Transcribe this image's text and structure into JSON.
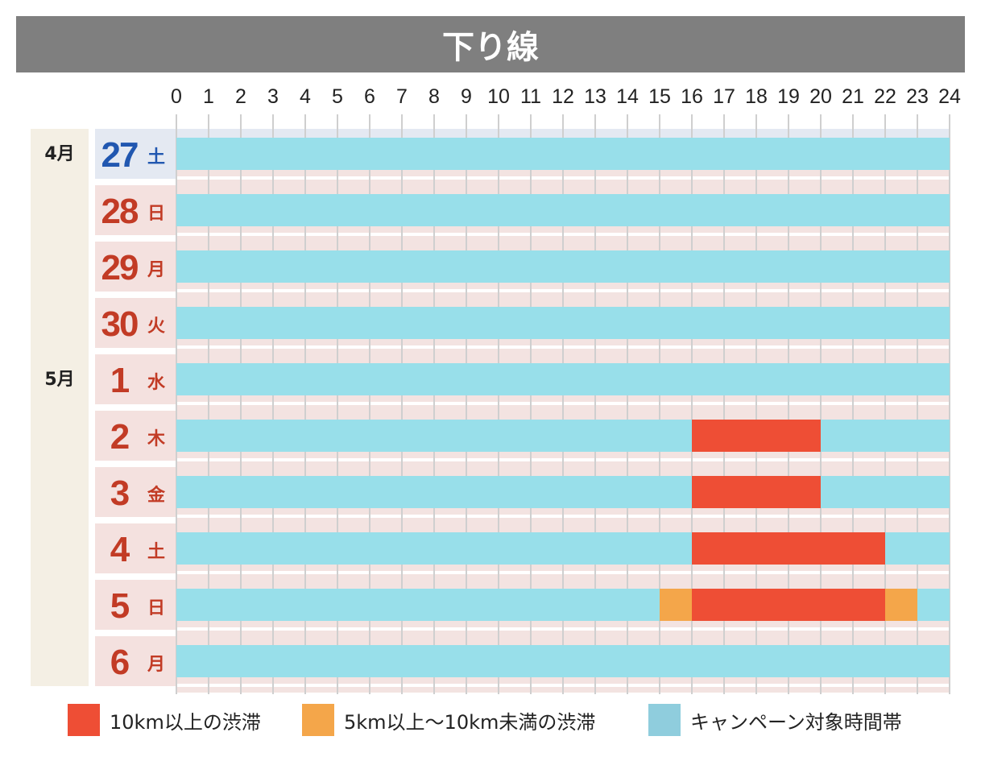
{
  "title": "下り線",
  "colors": {
    "heavy": "#ee4e35",
    "moderate": "#f4a64a",
    "campaign": "#98dfea",
    "legend_campaign": "#8fcddd",
    "sat": "#2157b0",
    "holiday": "#c23b25",
    "title_bg": "#7f7f7f"
  },
  "legend": [
    {
      "key": "heavy",
      "label": "10km以上の渋滞"
    },
    {
      "key": "moderate",
      "label": "5km以上〜10km未満の渋滞"
    },
    {
      "key": "campaign",
      "label": "キャンペーン対象時間帯"
    }
  ],
  "chart_data": {
    "type": "timeline",
    "title": "下り線",
    "x_range": [
      0,
      24
    ],
    "x_ticks": [
      "0",
      "1",
      "2",
      "3",
      "4",
      "5",
      "6",
      "7",
      "8",
      "9",
      "10",
      "11",
      "12",
      "13",
      "14",
      "15",
      "16",
      "17",
      "18",
      "19",
      "20",
      "21",
      "22",
      "23",
      "24"
    ],
    "months": [
      {
        "label": "4月",
        "first_row": 0
      },
      {
        "label": "5月",
        "first_row": 4
      }
    ],
    "rows": [
      {
        "day": "27",
        "weekday": "土",
        "style": "sat",
        "segments": [
          {
            "start": 0,
            "end": 24,
            "type": "campaign"
          }
        ]
      },
      {
        "day": "28",
        "weekday": "日",
        "style": "holiday",
        "segments": [
          {
            "start": 0,
            "end": 24,
            "type": "campaign"
          }
        ]
      },
      {
        "day": "29",
        "weekday": "月",
        "style": "holiday",
        "segments": [
          {
            "start": 0,
            "end": 24,
            "type": "campaign"
          }
        ]
      },
      {
        "day": "30",
        "weekday": "火",
        "style": "holiday",
        "segments": [
          {
            "start": 0,
            "end": 24,
            "type": "campaign"
          }
        ]
      },
      {
        "day": "1",
        "weekday": "水",
        "style": "holiday",
        "segments": [
          {
            "start": 0,
            "end": 24,
            "type": "campaign"
          }
        ]
      },
      {
        "day": "2",
        "weekday": "木",
        "style": "holiday",
        "segments": [
          {
            "start": 0,
            "end": 16,
            "type": "campaign"
          },
          {
            "start": 16,
            "end": 20,
            "type": "heavy"
          },
          {
            "start": 20,
            "end": 24,
            "type": "campaign"
          }
        ]
      },
      {
        "day": "3",
        "weekday": "金",
        "style": "holiday",
        "segments": [
          {
            "start": 0,
            "end": 16,
            "type": "campaign"
          },
          {
            "start": 16,
            "end": 20,
            "type": "heavy"
          },
          {
            "start": 20,
            "end": 24,
            "type": "campaign"
          }
        ]
      },
      {
        "day": "4",
        "weekday": "土",
        "style": "holiday",
        "segments": [
          {
            "start": 0,
            "end": 16,
            "type": "campaign"
          },
          {
            "start": 16,
            "end": 22,
            "type": "heavy"
          },
          {
            "start": 22,
            "end": 24,
            "type": "campaign"
          }
        ]
      },
      {
        "day": "5",
        "weekday": "日",
        "style": "holiday",
        "segments": [
          {
            "start": 0,
            "end": 15,
            "type": "campaign"
          },
          {
            "start": 15,
            "end": 16,
            "type": "moderate"
          },
          {
            "start": 16,
            "end": 22,
            "type": "heavy"
          },
          {
            "start": 22,
            "end": 23,
            "type": "moderate"
          },
          {
            "start": 23,
            "end": 24,
            "type": "campaign"
          }
        ]
      },
      {
        "day": "6",
        "weekday": "月",
        "style": "holiday",
        "segments": [
          {
            "start": 0,
            "end": 24,
            "type": "campaign"
          }
        ]
      }
    ]
  }
}
